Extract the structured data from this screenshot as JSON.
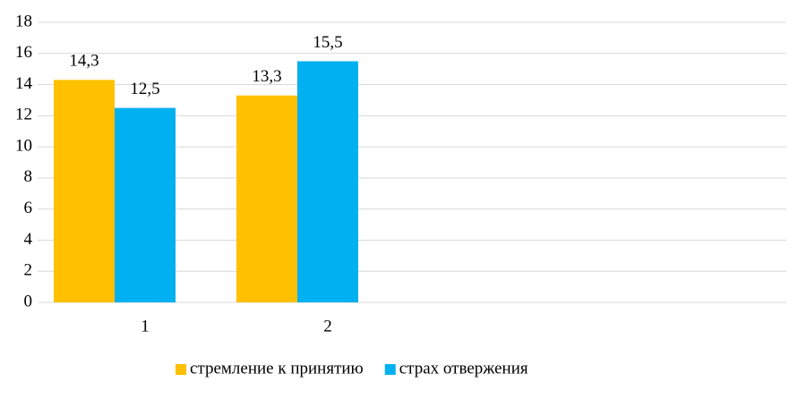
{
  "chart_data": {
    "type": "bar",
    "categories": [
      "1",
      "2",
      null,
      null
    ],
    "series": [
      {
        "name": "стремление к принятию",
        "color": "#ffc000",
        "values": [
          14.3,
          13.3,
          null,
          null
        ],
        "value_labels": [
          "14,3",
          "13,3",
          null,
          null
        ]
      },
      {
        "name": "страх отвержения",
        "color": "#00b0f0",
        "values": [
          12.5,
          15.5,
          null,
          null
        ],
        "value_labels": [
          "12,5",
          "15,5",
          null,
          null
        ]
      }
    ],
    "ylim": [
      0,
      18
    ],
    "yticks": [
      0,
      2,
      4,
      6,
      8,
      10,
      12,
      14,
      16,
      18
    ],
    "grid": true,
    "legend": "bottom"
  }
}
